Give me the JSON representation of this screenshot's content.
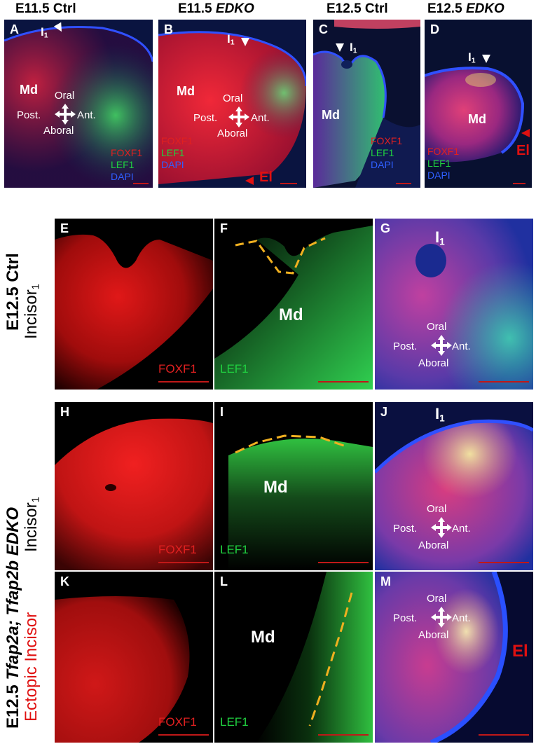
{
  "columns": [
    "E11.5 Ctrl",
    "E11.5 ",
    "EDKO",
    "E12.5 Ctrl",
    "E12.5 ",
    "EDKO"
  ],
  "col_titles": {
    "a": "E11.5 Ctrl",
    "b_prefix": "E11.5 ",
    "b_italic": "EDKO",
    "c": "E12.5 Ctrl",
    "d_prefix": "E12.5 ",
    "d_italic": "EDKO"
  },
  "panel_letters": [
    "A",
    "B",
    "C",
    "D",
    "E",
    "F",
    "G",
    "H",
    "I",
    "J",
    "K",
    "L",
    "M"
  ],
  "labels": {
    "md": "Md",
    "i1": "I",
    "sub1": "1",
    "el": "El",
    "oral": "Oral",
    "post": "Post.",
    "ant": "Ant.",
    "aboral": "Aboral",
    "foxf1": "FOXF1",
    "lef1": "LEF1",
    "dapi": "DAPI"
  },
  "row_labels": {
    "row1_main": "E12.5 Ctrl",
    "row1_sub": "Incisor",
    "row1_subscript": "1",
    "row23_main_prefix": "E12.5 ",
    "row23_main_italic": "Tfap2a; Tfap2b EDKO",
    "row2_sub": "Incisor",
    "row2_subscript": "1",
    "row3_sub": "Ectopic Incisor"
  },
  "colors": {
    "foxf1": "#e02020",
    "lef1": "#20d040",
    "dapi": "#2f5fff",
    "dashed_line": "#f0b020",
    "ectopic_label": "#e01010"
  }
}
